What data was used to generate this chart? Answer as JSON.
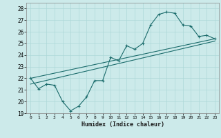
{
  "title": "",
  "xlabel": "Humidex (Indice chaleur)",
  "background_color": "#cceaea",
  "grid_color": "#add8d8",
  "line_color": "#1a6b6b",
  "xlim": [
    -0.5,
    23.5
  ],
  "ylim": [
    19,
    28.5
  ],
  "xticks": [
    0,
    1,
    2,
    3,
    4,
    5,
    6,
    7,
    8,
    9,
    10,
    11,
    12,
    13,
    14,
    15,
    16,
    17,
    18,
    19,
    20,
    21,
    22,
    23
  ],
  "yticks": [
    19,
    20,
    21,
    22,
    23,
    24,
    25,
    26,
    27,
    28
  ],
  "series1_x": [
    0,
    1,
    2,
    3,
    4,
    5,
    6,
    7,
    8,
    9,
    10,
    11,
    12,
    13,
    14,
    15,
    16,
    17,
    18,
    19,
    20,
    21,
    22,
    23
  ],
  "series1_y": [
    22.0,
    21.1,
    21.5,
    21.4,
    20.0,
    19.2,
    19.6,
    20.4,
    21.8,
    21.8,
    23.8,
    23.5,
    24.8,
    24.5,
    25.0,
    26.6,
    27.5,
    27.7,
    27.6,
    26.6,
    26.5,
    25.6,
    25.7,
    25.4
  ],
  "series2_x": [
    0,
    23
  ],
  "series2_y": [
    21.5,
    25.2
  ],
  "series3_x": [
    0,
    23
  ],
  "series3_y": [
    22.0,
    25.4
  ],
  "marker": "+"
}
